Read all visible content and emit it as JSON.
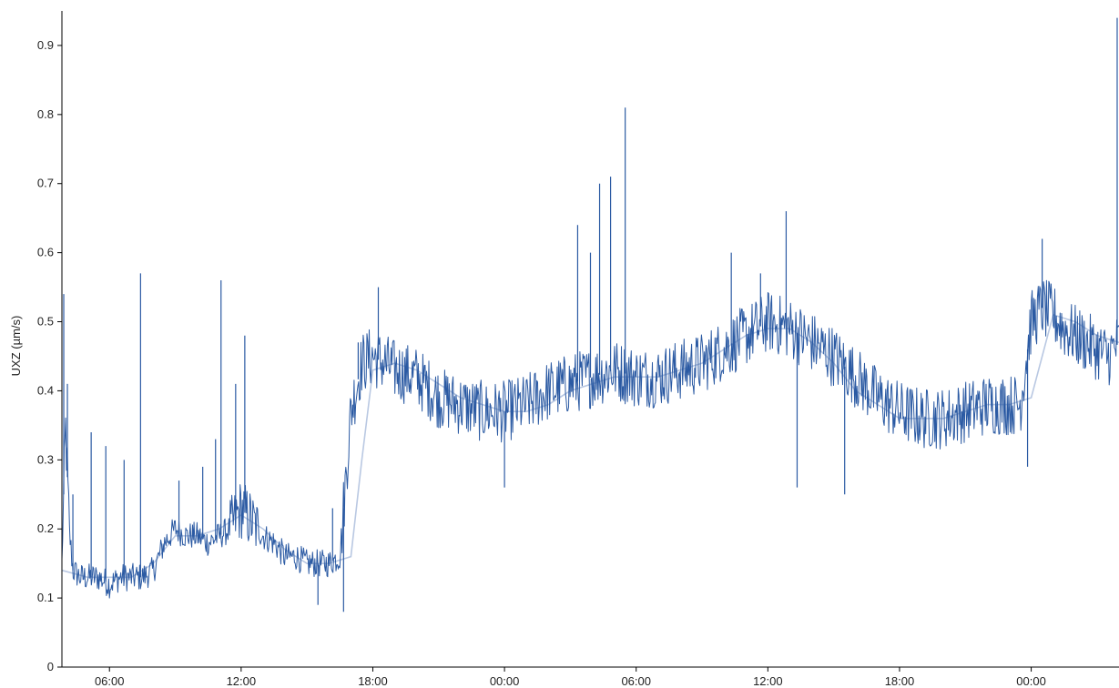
{
  "chart_data": {
    "type": "line",
    "title": "",
    "xlabel": "",
    "ylabel": "UXZ (µm/s)",
    "ylim": [
      0,
      0.95
    ],
    "xlim": [
      "2000-01-01T03:50",
      "2000-01-03T04:00"
    ],
    "grid": false,
    "y_ticks": [
      "0",
      "0.1",
      "0.2",
      "0.3",
      "0.4",
      "0.5",
      "0.6",
      "0.7",
      "0.8",
      "0.9"
    ],
    "x_ticks": [
      "06:00",
      "12:00",
      "18:00",
      "00:00",
      "06:00",
      "12:00",
      "18:00",
      "00:00"
    ],
    "colors": {
      "raw": "#2b5aa3",
      "smoothed": "#b9c8e2"
    },
    "series": [
      {
        "style": "raw",
        "x": [
          "2000-01-01T03:50",
          "2000-01-01T04:00",
          "2000-01-01T04:10",
          "2000-01-01T04:20",
          "2000-01-01T04:40",
          "2000-01-01T05:00",
          "2000-01-01T05:30",
          "2000-01-01T06:00",
          "2000-01-01T06:30",
          "2000-01-01T07:00",
          "2000-01-01T07:30",
          "2000-01-01T08:00",
          "2000-01-01T08:30",
          "2000-01-01T09:00",
          "2000-01-01T09:30",
          "2000-01-01T10:00",
          "2000-01-01T10:30",
          "2000-01-01T11:00",
          "2000-01-01T11:30",
          "2000-01-01T12:00",
          "2000-01-01T12:30",
          "2000-01-01T13:00",
          "2000-01-01T13:30",
          "2000-01-01T14:00",
          "2000-01-01T14:30",
          "2000-01-01T15:00",
          "2000-01-01T15:30",
          "2000-01-01T16:00",
          "2000-01-01T16:30",
          "2000-01-01T17:00",
          "2000-01-01T17:30",
          "2000-01-01T18:00",
          "2000-01-01T18:30",
          "2000-01-01T19:00",
          "2000-01-01T20:00",
          "2000-01-01T21:00",
          "2000-01-01T22:00",
          "2000-01-01T23:00",
          "2000-01-02T00:00",
          "2000-01-02T01:00",
          "2000-01-02T02:00",
          "2000-01-02T03:00",
          "2000-01-02T04:00",
          "2000-01-02T05:00",
          "2000-01-02T06:00",
          "2000-01-02T07:00",
          "2000-01-02T08:00",
          "2000-01-02T09:00",
          "2000-01-02T10:00",
          "2000-01-02T11:00",
          "2000-01-02T12:00",
          "2000-01-02T13:00",
          "2000-01-02T14:00",
          "2000-01-02T15:00",
          "2000-01-02T16:00",
          "2000-01-02T17:00",
          "2000-01-02T18:00",
          "2000-01-02T19:00",
          "2000-01-02T20:00",
          "2000-01-02T21:00",
          "2000-01-02T22:00",
          "2000-01-02T23:00",
          "2000-01-02T23:30",
          "2000-01-03T00:00",
          "2000-01-03T00:30",
          "2000-01-03T01:00",
          "2000-01-03T01:30",
          "2000-01-03T02:00",
          "2000-01-03T02:30",
          "2000-01-03T03:00",
          "2000-01-03T03:30",
          "2000-01-03T04:00"
        ],
        "values": [
          0.15,
          0.35,
          0.2,
          0.14,
          0.13,
          0.13,
          0.13,
          0.12,
          0.13,
          0.13,
          0.13,
          0.14,
          0.18,
          0.2,
          0.19,
          0.19,
          0.18,
          0.19,
          0.2,
          0.23,
          0.21,
          0.19,
          0.18,
          0.16,
          0.16,
          0.15,
          0.15,
          0.15,
          0.16,
          0.37,
          0.44,
          0.45,
          0.44,
          0.43,
          0.42,
          0.39,
          0.38,
          0.37,
          0.37,
          0.38,
          0.4,
          0.41,
          0.42,
          0.43,
          0.42,
          0.42,
          0.43,
          0.44,
          0.46,
          0.48,
          0.5,
          0.49,
          0.47,
          0.45,
          0.42,
          0.39,
          0.37,
          0.36,
          0.36,
          0.37,
          0.38,
          0.38,
          0.38,
          0.5,
          0.52,
          0.51,
          0.49,
          0.48,
          0.47,
          0.46,
          0.45,
          0.47
        ]
      },
      {
        "style": "smoothed",
        "x": [
          "2000-01-01T03:50",
          "2000-01-01T05:00",
          "2000-01-01T06:00",
          "2000-01-01T07:00",
          "2000-01-01T08:00",
          "2000-01-01T09:00",
          "2000-01-01T10:00",
          "2000-01-01T11:00",
          "2000-01-01T12:00",
          "2000-01-01T13:00",
          "2000-01-01T14:00",
          "2000-01-01T15:00",
          "2000-01-01T16:00",
          "2000-01-01T17:00",
          "2000-01-01T17:30",
          "2000-01-01T18:00",
          "2000-01-01T19:00",
          "2000-01-01T20:00",
          "2000-01-01T21:00",
          "2000-01-01T22:00",
          "2000-01-01T23:00",
          "2000-01-02T00:00",
          "2000-01-02T01:00",
          "2000-01-02T02:00",
          "2000-01-02T03:00",
          "2000-01-02T04:00",
          "2000-01-02T05:00",
          "2000-01-02T06:00",
          "2000-01-02T07:00",
          "2000-01-02T08:00",
          "2000-01-02T09:00",
          "2000-01-02T10:00",
          "2000-01-02T11:00",
          "2000-01-02T12:00",
          "2000-01-02T13:00",
          "2000-01-02T14:00",
          "2000-01-02T15:00",
          "2000-01-02T16:00",
          "2000-01-02T17:00",
          "2000-01-02T18:00",
          "2000-01-02T19:00",
          "2000-01-02T20:00",
          "2000-01-02T21:00",
          "2000-01-02T22:00",
          "2000-01-02T23:00",
          "2000-01-03T00:00",
          "2000-01-03T01:00",
          "2000-01-03T02:00",
          "2000-01-03T03:00",
          "2000-01-03T04:00"
        ],
        "values": [
          0.14,
          0.13,
          0.13,
          0.13,
          0.15,
          0.19,
          0.19,
          0.2,
          0.22,
          0.2,
          0.17,
          0.15,
          0.15,
          0.16,
          0.3,
          0.43,
          0.44,
          0.43,
          0.41,
          0.39,
          0.38,
          0.37,
          0.37,
          0.38,
          0.4,
          0.41,
          0.42,
          0.42,
          0.42,
          0.43,
          0.44,
          0.46,
          0.48,
          0.49,
          0.49,
          0.47,
          0.44,
          0.4,
          0.38,
          0.36,
          0.36,
          0.36,
          0.37,
          0.38,
          0.38,
          0.39,
          0.51,
          0.5,
          0.48,
          0.47
        ]
      }
    ],
    "spikes": [
      {
        "x": "2000-01-01T03:55",
        "y": 0.54
      },
      {
        "x": "2000-01-01T04:05",
        "y": 0.41
      },
      {
        "x": "2000-01-01T04:20",
        "y": 0.25
      },
      {
        "x": "2000-01-01T05:10",
        "y": 0.34
      },
      {
        "x": "2000-01-01T05:50",
        "y": 0.32
      },
      {
        "x": "2000-01-01T06:40",
        "y": 0.3
      },
      {
        "x": "2000-01-01T07:25",
        "y": 0.57
      },
      {
        "x": "2000-01-01T09:10",
        "y": 0.27
      },
      {
        "x": "2000-01-01T10:15",
        "y": 0.29
      },
      {
        "x": "2000-01-01T10:50",
        "y": 0.33
      },
      {
        "x": "2000-01-01T11:05",
        "y": 0.56
      },
      {
        "x": "2000-01-01T11:45",
        "y": 0.41
      },
      {
        "x": "2000-01-01T12:10",
        "y": 0.48
      },
      {
        "x": "2000-01-01T16:10",
        "y": 0.23
      },
      {
        "x": "2000-01-01T17:20",
        "y": 0.47
      },
      {
        "x": "2000-01-01T18:15",
        "y": 0.55
      },
      {
        "x": "2000-01-02T03:20",
        "y": 0.64
      },
      {
        "x": "2000-01-02T03:55",
        "y": 0.6
      },
      {
        "x": "2000-01-02T04:20",
        "y": 0.7
      },
      {
        "x": "2000-01-02T04:50",
        "y": 0.71
      },
      {
        "x": "2000-01-02T05:30",
        "y": 0.81
      },
      {
        "x": "2000-01-02T10:20",
        "y": 0.6
      },
      {
        "x": "2000-01-02T11:40",
        "y": 0.57
      },
      {
        "x": "2000-01-02T12:50",
        "y": 0.66
      },
      {
        "x": "2000-01-03T00:30",
        "y": 0.62
      },
      {
        "x": "2000-01-03T03:55",
        "y": 0.94
      }
    ],
    "dips": [
      {
        "x": "2000-01-01T15:30",
        "y": 0.09
      },
      {
        "x": "2000-01-01T16:40",
        "y": 0.08
      },
      {
        "x": "2000-01-02T00:00",
        "y": 0.26
      },
      {
        "x": "2000-01-02T13:20",
        "y": 0.26
      },
      {
        "x": "2000-01-02T15:30",
        "y": 0.25
      },
      {
        "x": "2000-01-02T23:50",
        "y": 0.29
      }
    ],
    "noise_amplitude": 0.045
  }
}
